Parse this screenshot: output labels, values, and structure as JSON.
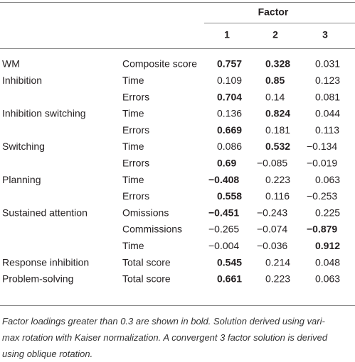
{
  "table": {
    "header": {
      "group": "Factor",
      "columns": [
        "1",
        "2",
        "3"
      ]
    },
    "rows": [
      {
        "group": "WM",
        "measure": "Composite score",
        "cells": [
          {
            "text": "0.757",
            "bold": true
          },
          {
            "text": "0.328",
            "bold": true
          },
          {
            "text": "0.031",
            "bold": false
          }
        ]
      },
      {
        "group": "Inhibition",
        "measure": "Time",
        "cells": [
          {
            "text": "0.109",
            "bold": false
          },
          {
            "text": "0.85",
            "bold": true
          },
          {
            "text": "0.123",
            "bold": false
          }
        ]
      },
      {
        "group": null,
        "measure": "Errors",
        "cells": [
          {
            "text": "0.704",
            "bold": true
          },
          {
            "text": "0.14",
            "bold": false
          },
          {
            "text": "0.081",
            "bold": false
          }
        ]
      },
      {
        "group": "Inhibition switching",
        "measure": "Time",
        "cells": [
          {
            "text": "0.136",
            "bold": false
          },
          {
            "text": "0.824",
            "bold": true
          },
          {
            "text": "0.044",
            "bold": false
          }
        ]
      },
      {
        "group": null,
        "measure": "Errors",
        "cells": [
          {
            "text": "0.669",
            "bold": true
          },
          {
            "text": "0.181",
            "bold": false
          },
          {
            "text": "0.113",
            "bold": false
          }
        ]
      },
      {
        "group": "Switching",
        "measure": "Time",
        "cells": [
          {
            "text": "0.086",
            "bold": false
          },
          {
            "text": "0.532",
            "bold": true
          },
          {
            "text": "−0.134",
            "bold": false
          }
        ]
      },
      {
        "group": null,
        "measure": "Errors",
        "cells": [
          {
            "text": "0.69",
            "bold": true
          },
          {
            "text": "−0.085",
            "bold": false
          },
          {
            "text": "−0.019",
            "bold": false
          }
        ]
      },
      {
        "group": "Planning",
        "measure": "Time",
        "cells": [
          {
            "text": "−0.408",
            "bold": true
          },
          {
            "text": "0.223",
            "bold": false
          },
          {
            "text": "0.063",
            "bold": false
          }
        ]
      },
      {
        "group": null,
        "measure": "Errors",
        "cells": [
          {
            "text": "0.558",
            "bold": true
          },
          {
            "text": "0.116",
            "bold": false
          },
          {
            "text": "−0.253",
            "bold": false
          }
        ]
      },
      {
        "group": "Sustained attention",
        "measure": "Omissions",
        "cells": [
          {
            "text": "−0.451",
            "bold": true
          },
          {
            "text": "−0.243",
            "bold": false
          },
          {
            "text": "0.225",
            "bold": false
          }
        ]
      },
      {
        "group": null,
        "measure": "Commissions",
        "cells": [
          {
            "text": "−0.265",
            "bold": false
          },
          {
            "text": "−0.074",
            "bold": false
          },
          {
            "text": "−0.879",
            "bold": true
          }
        ]
      },
      {
        "group": null,
        "measure": "Time",
        "cells": [
          {
            "text": "−0.004",
            "bold": false
          },
          {
            "text": "−0.036",
            "bold": false
          },
          {
            "text": "0.912",
            "bold": true
          }
        ]
      },
      {
        "group": "Response inhibition",
        "measure": "Total score",
        "cells": [
          {
            "text": "0.545",
            "bold": true
          },
          {
            "text": "0.214",
            "bold": false
          },
          {
            "text": "0.048",
            "bold": false
          }
        ]
      },
      {
        "group": "Problem-solving",
        "measure": "Total score",
        "cells": [
          {
            "text": "0.661",
            "bold": true
          },
          {
            "text": "0.223",
            "bold": false
          },
          {
            "text": "0.063",
            "bold": false
          }
        ]
      }
    ],
    "note": [
      "Factor loadings greater than 0.3 are shown in bold. Solution derived using vari-",
      "max rotation with Kaiser normalization. A convergent 3 factor solution is derived",
      "using oblique rotation."
    ]
  }
}
